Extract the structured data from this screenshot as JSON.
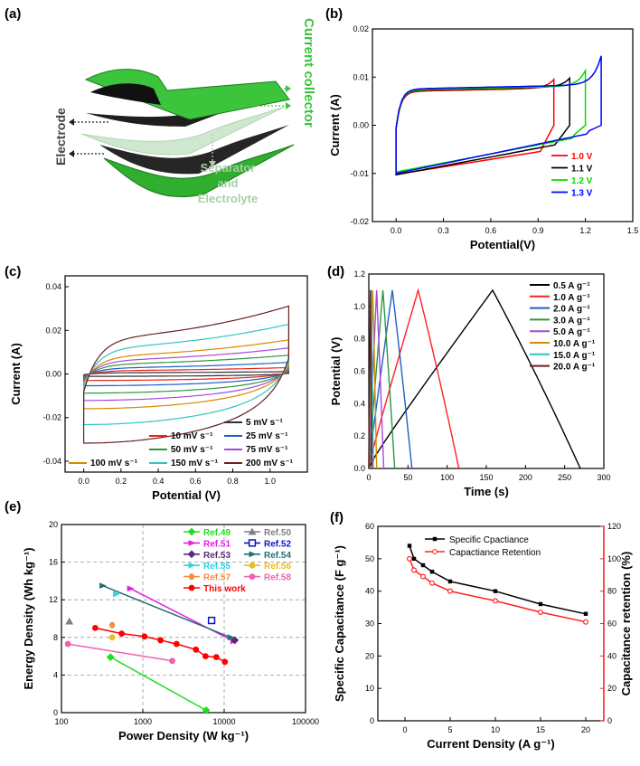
{
  "panel_labels": [
    "(a)",
    "(b)",
    "(c)",
    "(d)",
    "(e)",
    "(f)"
  ],
  "schematic": {
    "labels": {
      "current_collector": "Current collector",
      "electrode": "Electrode",
      "separator": "Separator",
      "and": "and",
      "electrolyte": "Electrolyte"
    },
    "colors": {
      "collector": "#3cc43c",
      "electrode": "#1e1e1e",
      "separator": "#cfe6cf"
    }
  },
  "chart_data": [
    {
      "id": "b",
      "type": "line",
      "xlabel": "Potential(V)",
      "ylabel": "Current (A)",
      "xlim": [
        -0.15,
        1.5
      ],
      "ylim": [
        -0.02,
        0.02
      ],
      "xticks": [
        "0.0",
        "0.3",
        "0.6",
        "0.9",
        "1.2",
        "1.5"
      ],
      "xtick_values": [
        0,
        0.3,
        0.6,
        0.9,
        1.2,
        1.5
      ],
      "yticks": [
        "-0.02",
        "-0.01",
        "0.00",
        "0.01",
        "0.02"
      ],
      "ytick_values": [
        -0.02,
        -0.01,
        0,
        0.01,
        0.02
      ],
      "series": [
        {
          "name": "1.0 V",
          "color": "#ff0000",
          "vmax": 1.0,
          "upper": 0.0075,
          "lower_start": -0.0102,
          "lower_end": -0.005,
          "peak": 0.0093
        },
        {
          "name": "1.1 V",
          "color": "#000000",
          "vmax": 1.1,
          "upper": 0.0077,
          "lower_start": -0.0103,
          "lower_end": -0.0035,
          "peak": 0.0095
        },
        {
          "name": "1.2 V",
          "color": "#00dd00",
          "vmax": 1.2,
          "upper": 0.0078,
          "lower_start": -0.0097,
          "lower_end": -0.0022,
          "peak": 0.011
        },
        {
          "name": "1.3 V",
          "color": "#0000ff",
          "vmax": 1.3,
          "upper": 0.008,
          "lower_start": -0.01,
          "lower_end": -0.0012,
          "peak": 0.014
        }
      ]
    },
    {
      "id": "c",
      "type": "line",
      "xlabel": "Potential (V)",
      "ylabel": "Current (A)",
      "xlim": [
        -0.1,
        1.2
      ],
      "ylim": [
        -0.045,
        0.045
      ],
      "xticks": [
        "0.0",
        "0.2",
        "0.4",
        "0.6",
        "0.8",
        "1.0"
      ],
      "xtick_values": [
        0,
        0.2,
        0.4,
        0.6,
        0.8,
        1.0
      ],
      "yticks": [
        "-0.04",
        "-0.02",
        "0.00",
        "0.02",
        "0.04"
      ],
      "ytick_values": [
        -0.04,
        -0.02,
        0,
        0.02,
        0.04
      ],
      "series": [
        {
          "name": "5 mV s⁻¹",
          "color": "#333333",
          "amp": 0.0008
        },
        {
          "name": "10 mV s⁻¹",
          "color": "#e8241c",
          "amp": 0.0022
        },
        {
          "name": "25 mV s⁻¹",
          "color": "#1f5fc4",
          "amp": 0.004
        },
        {
          "name": "50 mV s⁻¹",
          "color": "#2a9a3c",
          "amp": 0.0065
        },
        {
          "name": "75 mV s⁻¹",
          "color": "#a64ad8",
          "amp": 0.009
        },
        {
          "name": "100 mV s⁻¹",
          "color": "#d88a00",
          "amp": 0.0118
        },
        {
          "name": "150 mV s⁻¹",
          "color": "#2ec4c4",
          "amp": 0.0172
        },
        {
          "name": "200 mV s⁻¹",
          "color": "#6b2020",
          "amp": 0.0235
        }
      ]
    },
    {
      "id": "d",
      "type": "line",
      "xlabel": "Time (s)",
      "ylabel": "Potential (V)",
      "xlim": [
        0,
        300
      ],
      "ylim": [
        0,
        1.2
      ],
      "xticks": [
        "0",
        "50",
        "100",
        "150",
        "200",
        "250",
        "300"
      ],
      "xtick_values": [
        0,
        50,
        100,
        150,
        200,
        250,
        300
      ],
      "yticks": [
        "0.0",
        "0.2",
        "0.4",
        "0.6",
        "0.8",
        "1.0",
        "1.2"
      ],
      "ytick_values": [
        0,
        0.2,
        0.4,
        0.6,
        0.8,
        1.0,
        1.2
      ],
      "vmax": 1.1,
      "series": [
        {
          "name": "0.5 A g⁻¹",
          "color": "#000000",
          "t_charge": 158,
          "t_end": 270
        },
        {
          "name": "1.0 A g⁻¹",
          "color": "#ff2020",
          "t_charge": 63,
          "t_end": 115
        },
        {
          "name": "2.0 A g⁻¹",
          "color": "#1f5fc4",
          "t_charge": 30,
          "t_end": 55
        },
        {
          "name": "3.0 A g⁻¹",
          "color": "#2a9a3c",
          "t_charge": 18,
          "t_end": 33
        },
        {
          "name": "5.0 A g⁻¹",
          "color": "#a64ad8",
          "t_charge": 10,
          "t_end": 19
        },
        {
          "name": "10.0 A g⁻¹",
          "color": "#d88a00",
          "t_charge": 5,
          "t_end": 10
        },
        {
          "name": "15.0 A g⁻¹",
          "color": "#2ec4c4",
          "t_charge": 3,
          "t_end": 6
        },
        {
          "name": "20.0 A g⁻¹",
          "color": "#6b2020",
          "t_charge": 2,
          "t_end": 4
        }
      ]
    },
    {
      "id": "e",
      "type": "scatter",
      "xlabel": "Power Density (W kg⁻¹)",
      "ylabel": "Energy Density (Wh kg⁻¹)",
      "xscale": "log",
      "xlim": [
        100,
        100000
      ],
      "ylim": [
        0,
        20
      ],
      "xticks": [
        "100",
        "1000",
        "10000",
        "100000"
      ],
      "xtick_values": [
        100,
        1000,
        10000,
        100000
      ],
      "yticks": [
        "0",
        "4",
        "8",
        "12",
        "16",
        "20"
      ],
      "ytick_values": [
        0,
        4,
        8,
        12,
        16,
        20
      ],
      "series": [
        {
          "name": "Ref.49",
          "color": "#22dd22",
          "marker": "diamond",
          "points": [
            [
              400,
              5.9
            ],
            [
              6000,
              0.25
            ]
          ]
        },
        {
          "name": "Ref.50",
          "color": "#808080",
          "marker": "triangle",
          "points": [
            [
              125,
              9.7
            ]
          ]
        },
        {
          "name": "Ref.51",
          "color": "#e020e0",
          "marker": "tri-right",
          "points": [
            [
              700,
              13.2
            ],
            [
              13000,
              7.6
            ]
          ]
        },
        {
          "name": "Ref.52",
          "color": "#1010c8",
          "marker": "square",
          "points": [
            [
              7000,
              9.8
            ]
          ]
        },
        {
          "name": "Ref.53",
          "color": "#5a2a7a",
          "marker": "diamond",
          "points": [
            [
              13500,
              7.7
            ]
          ]
        },
        {
          "name": "Ref.54",
          "color": "#1f7070",
          "marker": "tri-right",
          "points": [
            [
              320,
              13.5
            ],
            [
              12000,
              8.0
            ]
          ]
        },
        {
          "name": "Ref.55",
          "color": "#20d8e8",
          "marker": "tri-right",
          "points": [
            [
              470,
              12.6
            ]
          ]
        },
        {
          "name": "Ref.56",
          "color": "#e8c020",
          "marker": "circle",
          "points": [
            [
              420,
              8.0
            ]
          ]
        },
        {
          "name": "Ref.57",
          "color": "#f09040",
          "marker": "hexagon",
          "points": [
            [
              420,
              9.3
            ]
          ]
        },
        {
          "name": "Ref.58",
          "color": "#f060b0",
          "marker": "circle",
          "points": [
            [
              120,
              7.3
            ],
            [
              2300,
              5.5
            ]
          ]
        },
        {
          "name": "This work",
          "color": "#ff0000",
          "marker": "circle",
          "points": [
            [
              260,
              9.0
            ],
            [
              550,
              8.4
            ],
            [
              1050,
              8.1
            ],
            [
              1650,
              7.7
            ],
            [
              2600,
              7.3
            ],
            [
              4500,
              6.7
            ],
            [
              5900,
              6.0
            ],
            [
              8000,
              5.9
            ],
            [
              10200,
              5.4
            ]
          ]
        }
      ]
    },
    {
      "id": "f",
      "type": "line",
      "xlabel": "Current Density (A g⁻¹)",
      "ylabel": "Specific Capacitance (F g⁻¹)",
      "ylabel_right": "Capacitance retention (%)",
      "x": [
        0.5,
        1,
        2,
        3,
        5,
        10,
        15,
        20
      ],
      "xlim": [
        -3,
        22
      ],
      "ylim": [
        0,
        60
      ],
      "ylim_right": [
        0,
        120
      ],
      "xticks": [
        "0",
        "5",
        "10",
        "15",
        "20"
      ],
      "xtick_values": [
        0,
        5,
        10,
        15,
        20
      ],
      "yticks": [
        "0",
        "10",
        "20",
        "30",
        "40",
        "50",
        "60"
      ],
      "ytick_values": [
        0,
        10,
        20,
        30,
        40,
        50,
        60
      ],
      "yticks_right": [
        "0",
        "20",
        "40",
        "60",
        "80",
        "100",
        "120"
      ],
      "ytick_values_right": [
        0,
        20,
        40,
        60,
        80,
        100,
        120
      ],
      "series": [
        {
          "name": "Specific Cpactiance",
          "color": "#000000",
          "axis": "left",
          "values": [
            54,
            50,
            48,
            46,
            43,
            40,
            36,
            33
          ]
        },
        {
          "name": "Capactiance Retention",
          "color": "#ff2020",
          "axis": "right",
          "values": [
            100,
            93,
            89,
            85,
            80,
            74,
            67,
            61
          ]
        }
      ]
    }
  ]
}
